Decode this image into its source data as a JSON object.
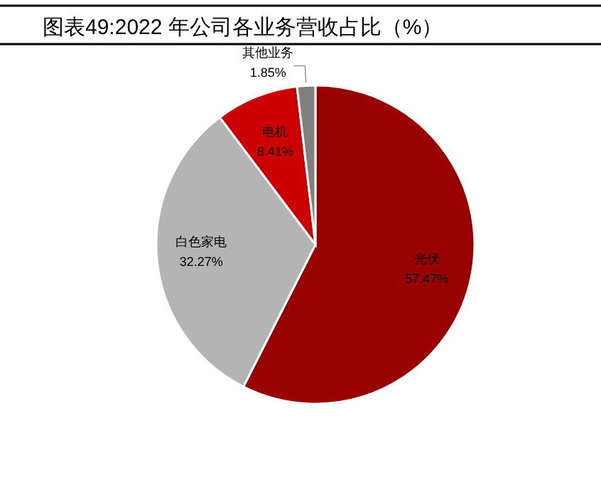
{
  "chart_data": {
    "type": "pie",
    "title": "图表49:2022 年公司各业务营收占比（%）",
    "categories": [
      "光伏",
      "白色家电",
      "电机",
      "其他业务"
    ],
    "values": [
      57.47,
      32.27,
      8.41,
      1.85
    ],
    "colors": [
      "#990000",
      "#b4b4b4",
      "#cc0000",
      "#808080"
    ],
    "value_labels": [
      "57.47%",
      "32.27%",
      "8.41%",
      "1.85%"
    ]
  }
}
